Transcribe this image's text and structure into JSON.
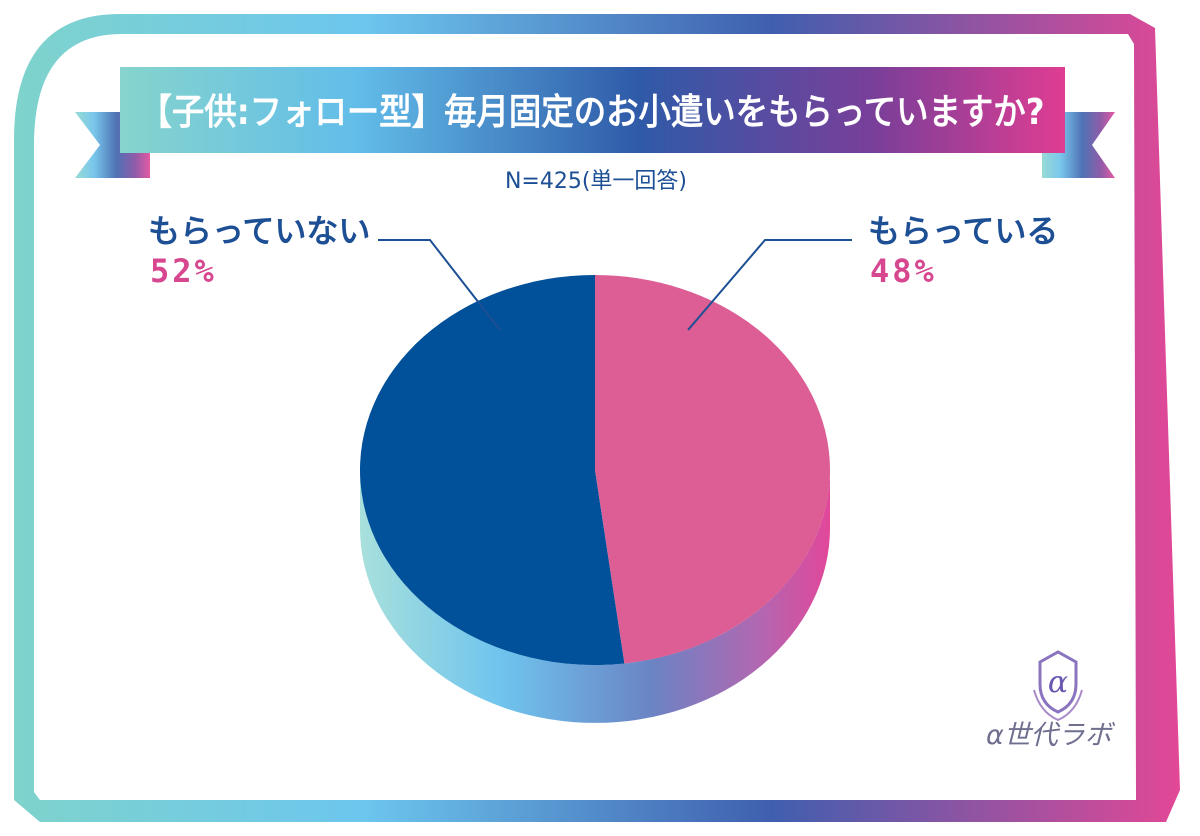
{
  "header": {
    "title": "【子供:フォロー型】毎月固定のお小遣いをもらっていますか?",
    "subtitle": "N=425(単一回答)"
  },
  "chart_data": {
    "type": "pie",
    "title": "【子供:フォロー型】毎月固定のお小遣いをもらっていますか?",
    "subtitle": "N=425(単一回答)",
    "series": [
      {
        "name": "もらっていない",
        "value": 52,
        "label": "52%",
        "color": "#00509a"
      },
      {
        "name": "もらっている",
        "value": 48,
        "label": "48%",
        "color": "#dc5e95"
      }
    ]
  },
  "branding": {
    "logo_text": "α世代ラボ"
  },
  "colors": {
    "frame_gradient": [
      "#7fd3cc",
      "#6cc6ee",
      "#3f5fae",
      "#e24896"
    ],
    "label_text": "#1d4f94",
    "percent_text": "#d6478f"
  }
}
